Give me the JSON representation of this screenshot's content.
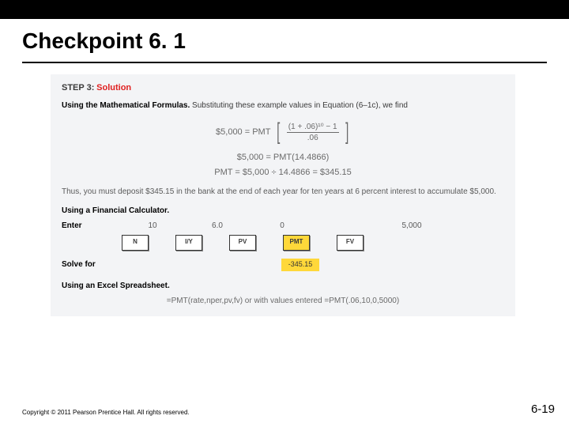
{
  "colors": {
    "topbar": "#000000",
    "panel_bg": "#f3f4f6",
    "red": "#e02020",
    "highlight": "#ffd83a",
    "body_text": "#3a3a3a",
    "muted_text": "#6a6a6a"
  },
  "title": "Checkpoint 6. 1",
  "step": {
    "label": "STEP 3:",
    "solution": "Solution"
  },
  "mathematical": {
    "heading": "Using the Mathematical Formulas.",
    "intro": " Substituting these example values in Equation (6–1c), we find",
    "eq1_lhs": "$5,000 = PMT",
    "eq1_numer": "(1 + .06)¹⁰ − 1",
    "eq1_denom": ".06",
    "eq2": "$5,000 = PMT(14.4866)",
    "eq3": "PMT = $5,000 ÷ 14.4866 = $345.15",
    "conclusion": "Thus, you must deposit $345.15 in the bank at the end of each year for ten years at 6 percent interest to accumulate $5,000."
  },
  "calculator": {
    "heading": "Using a Financial Calculator.",
    "enter_label": "Enter",
    "solve_label": "Solve for",
    "inputs": {
      "n": "10",
      "iy": "6.0",
      "pv": "0",
      "pmt": "",
      "fv": "5,000"
    },
    "buttons": {
      "n": "N",
      "iy": "I/Y",
      "pv": "PV",
      "pmt": "PMT",
      "fv": "FV"
    },
    "result": "-345.15"
  },
  "excel": {
    "heading": "Using an Excel Spreadsheet.",
    "formula": "=PMT(rate,nper,pv,fv) or with values entered =PMT(.06,10,0,5000)"
  },
  "footer": {
    "copyright": "Copyright © 2011 Pearson Prentice Hall. All rights reserved.",
    "page": "6-19"
  }
}
